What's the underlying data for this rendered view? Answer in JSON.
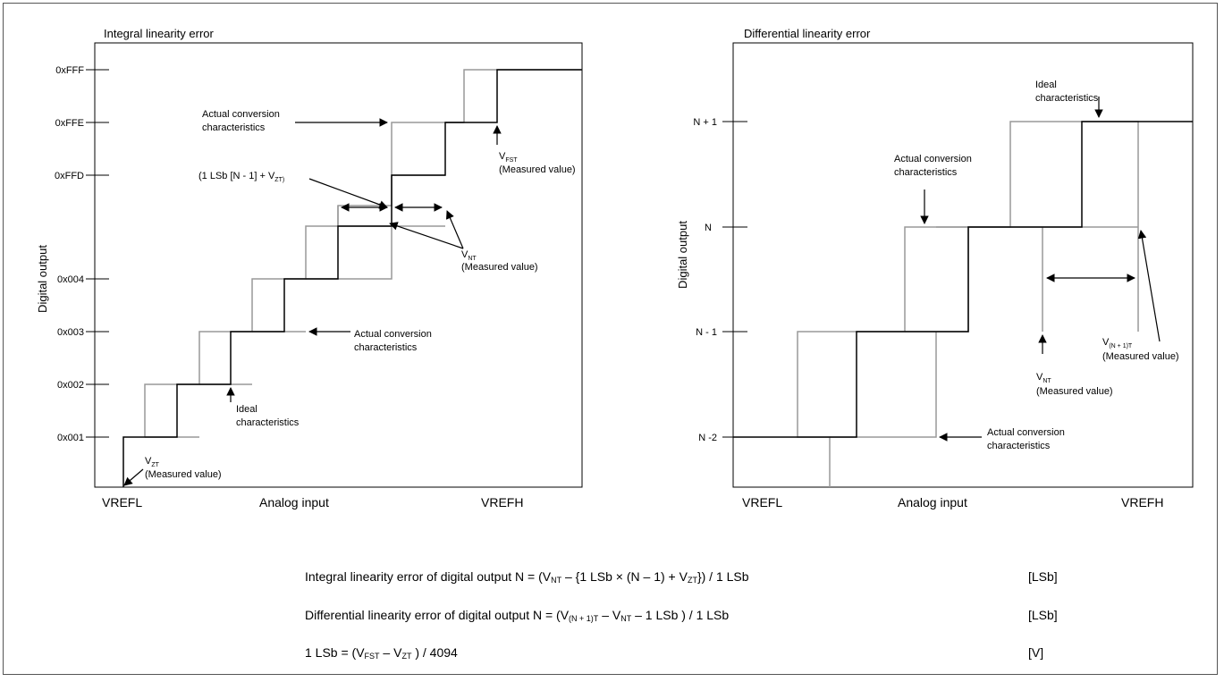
{
  "integral_panel": {
    "title": "Integral linearity error",
    "y_label": "Digital output",
    "y_ticks": [
      "0xFFF",
      "0xFFE",
      "0xFFD",
      "0x004",
      "0x003",
      "0x002",
      "0x001"
    ],
    "x_ticks": {
      "left": "VREFL",
      "center": "Analog input",
      "right": "VREFH"
    },
    "annotations": {
      "actual_top_line1": "Actual conversion",
      "actual_top_line2": "characteristics",
      "vfst_main": "V",
      "vfst_sub": "FST",
      "vfst_measured": "(Measured value)",
      "lsb_formula": "(1 LSb [N - 1] + V",
      "lsb_formula_sub": "ZT)",
      "lsb_formula_end": ")",
      "vnt_main": "V",
      "vnt_sub": "NT",
      "vnt_measured": "(Measured value)",
      "actual_bottom_line1": "Actual conversion",
      "actual_bottom_line2": "characteristics",
      "ideal_line1": "Ideal",
      "ideal_line2": "characteristics",
      "vzt_main": "V",
      "vzt_sub": "ZT",
      "vzt_measured": "(Measured value)"
    }
  },
  "differential_panel": {
    "title": "Differential linearity error",
    "y_label": "Digital output",
    "y_ticks": [
      "N + 1",
      "N",
      "N - 1",
      "N -2"
    ],
    "x_ticks": {
      "left": "VREFL",
      "center": "Analog input",
      "right": "VREFH"
    },
    "annotations": {
      "ideal_line1": "Ideal",
      "ideal_line2": "characteristics",
      "actual_mid_line1": "Actual conversion",
      "actual_mid_line2": "characteristics",
      "vn1t_main": "V",
      "vn1t_sub": "(N + 1)T",
      "vn1t_measured": "(Measured value)",
      "vnt_main": "V",
      "vnt_sub": "NT",
      "vnt_measured": "(Measured value)",
      "actual_bottom_line1": "Actual conversion",
      "actual_bottom_line2": "characteristics"
    }
  },
  "formulas": {
    "integral": {
      "a": "Integral linearity error of digital output N = (V",
      "a_sub": "NT",
      "b": " – {1 LSb × (N – 1) + V",
      "b_sub": "ZT",
      "c": "}) / 1 LSb",
      "unit": "[LSb]"
    },
    "differential": {
      "a": "Differential linearity error of digital output N = (V",
      "a_sub": "(N + 1)T",
      "b": " – V",
      "b_sub": "NT",
      "c": " – 1 LSb ) / 1 LSb",
      "unit": "[LSb]"
    },
    "lsb": {
      "a": "1 LSb = (V",
      "a_sub": "FST",
      "b": " – V",
      "b_sub": "ZT",
      "c": " ) / 4094",
      "unit": "[V]"
    }
  },
  "colors": {
    "actual": "#000000",
    "ideal": "#999999"
  }
}
